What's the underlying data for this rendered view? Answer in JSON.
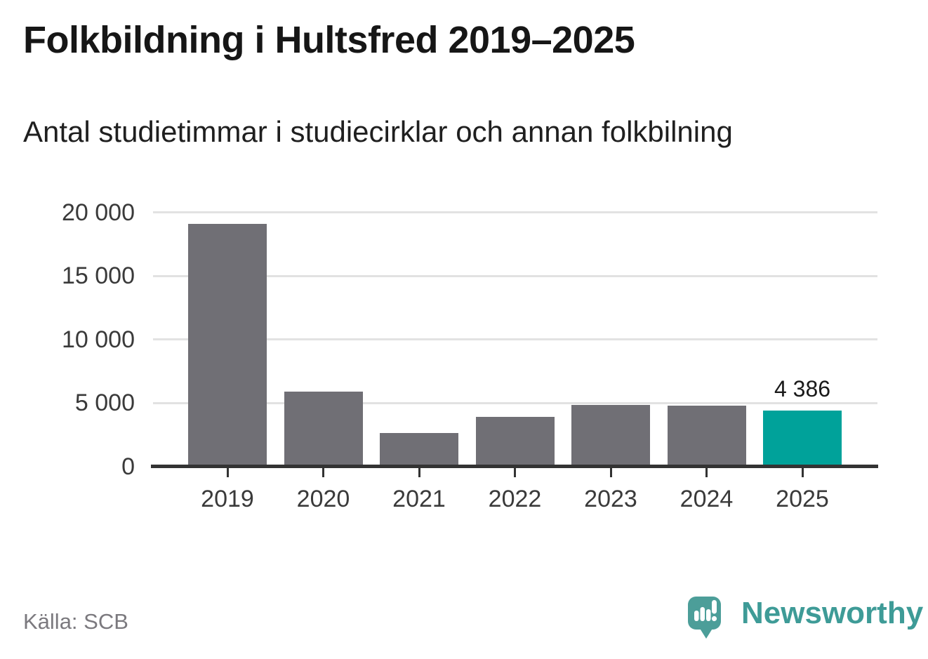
{
  "title": "Folkbildning i Hultsfred 2019–2025",
  "subtitle": "Antal studietimmar i studiecirklar och annan folkbilning",
  "source": "Källa: SCB",
  "brand": {
    "name": "Newsworthy",
    "text_color": "#3E9B97",
    "icon_color": "#4C9E99",
    "icon": "newsworthy-speech-bubble-chart-icon"
  },
  "colors": {
    "background": "#FFFFFF",
    "bar": "#706F75",
    "highlight": "#00A29A",
    "grid": "#E2E2E2",
    "axis": "#333333",
    "axis_text": "#3A3A3A",
    "title_text": "#161616",
    "muted_text": "#7B797E",
    "value_label": "#1A1A1A"
  },
  "chart_data": {
    "type": "bar",
    "title": "Folkbildning i Hultsfred 2019–2025",
    "subtitle": "Antal studietimmar i studiecirklar och annan folkbilning",
    "categories": [
      "2019",
      "2020",
      "2021",
      "2022",
      "2023",
      "2024",
      "2025"
    ],
    "values": [
      19100,
      5900,
      2600,
      3900,
      4850,
      4770,
      4386
    ],
    "highlight_index": 6,
    "annotations": [
      {
        "index": 6,
        "text": "4 386"
      }
    ],
    "xlabel": "",
    "ylabel": "",
    "ylim": [
      0,
      20000
    ],
    "yticks": [
      {
        "value": 0,
        "label": "0"
      },
      {
        "value": 5000,
        "label": "5 000"
      },
      {
        "value": 10000,
        "label": "10 000"
      },
      {
        "value": 15000,
        "label": "15 000"
      },
      {
        "value": 20000,
        "label": "20 000"
      }
    ],
    "grid": true,
    "legend": false,
    "source": "Källa: SCB"
  }
}
